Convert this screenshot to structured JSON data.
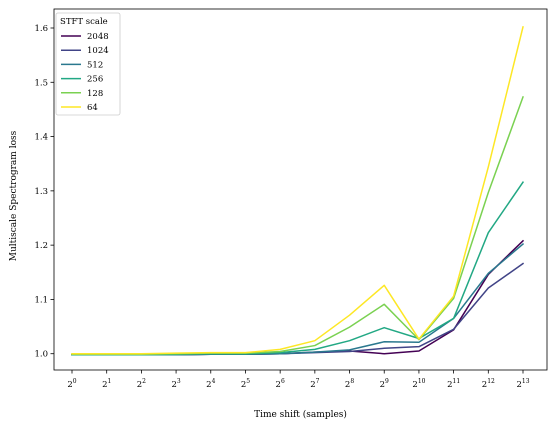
{
  "chart_data": {
    "type": "line",
    "title": "",
    "xlabel": "Time shift (samples)",
    "ylabel": "Multiscale Spectrogram loss",
    "x_scale": "log2",
    "x": [
      1,
      2,
      4,
      8,
      16,
      32,
      64,
      128,
      256,
      512,
      1024,
      2048,
      4096,
      8192
    ],
    "x_tick_labels": [
      {
        "base": "2",
        "exp": "0"
      },
      {
        "base": "2",
        "exp": "1"
      },
      {
        "base": "2",
        "exp": "2"
      },
      {
        "base": "2",
        "exp": "3"
      },
      {
        "base": "2",
        "exp": "4"
      },
      {
        "base": "2",
        "exp": "5"
      },
      {
        "base": "2",
        "exp": "6"
      },
      {
        "base": "2",
        "exp": "7"
      },
      {
        "base": "2",
        "exp": "8"
      },
      {
        "base": "2",
        "exp": "9"
      },
      {
        "base": "2",
        "exp": "10"
      },
      {
        "base": "2",
        "exp": "11"
      },
      {
        "base": "2",
        "exp": "12"
      },
      {
        "base": "2",
        "exp": "13"
      }
    ],
    "ylim": [
      0.97,
      1.635
    ],
    "y_ticks": [
      1.0,
      1.1,
      1.2,
      1.3,
      1.4,
      1.5,
      1.6
    ],
    "y_tick_labels": [
      "1.0",
      "1.1",
      "1.2",
      "1.3",
      "1.4",
      "1.5",
      "1.6"
    ],
    "grid": false,
    "legend": {
      "title": "STFT scale",
      "position": "top-left"
    },
    "series": [
      {
        "name": "2048",
        "color": "#440154",
        "values": [
          0.998,
          0.998,
          0.998,
          0.998,
          0.999,
          0.999,
          1.0,
          1.003,
          1.005,
          1.0,
          1.005,
          1.044,
          1.146,
          1.208
        ]
      },
      {
        "name": "1024",
        "color": "#414487",
        "values": [
          0.998,
          0.998,
          0.998,
          0.998,
          0.999,
          0.999,
          1.0,
          1.002,
          1.004,
          1.01,
          1.013,
          1.045,
          1.121,
          1.166
        ]
      },
      {
        "name": "512",
        "color": "#2a788e",
        "values": [
          0.998,
          0.998,
          0.998,
          0.998,
          0.999,
          0.999,
          1.0,
          1.003,
          1.007,
          1.022,
          1.021,
          1.065,
          1.148,
          1.202
        ]
      },
      {
        "name": "256",
        "color": "#22a884",
        "values": [
          0.998,
          0.998,
          0.998,
          0.999,
          1.0,
          1.0,
          1.002,
          1.008,
          1.024,
          1.048,
          1.028,
          1.065,
          1.223,
          1.316
        ]
      },
      {
        "name": "128",
        "color": "#7ad151",
        "values": [
          0.999,
          0.999,
          0.999,
          1.0,
          1.001,
          1.001,
          1.004,
          1.015,
          1.049,
          1.091,
          1.026,
          1.102,
          1.297,
          1.473
        ]
      },
      {
        "name": "64",
        "color": "#fde725",
        "values": [
          1.0,
          1.0,
          1.0,
          1.001,
          1.002,
          1.002,
          1.008,
          1.024,
          1.071,
          1.126,
          1.027,
          1.106,
          1.344,
          1.602
        ]
      }
    ]
  }
}
